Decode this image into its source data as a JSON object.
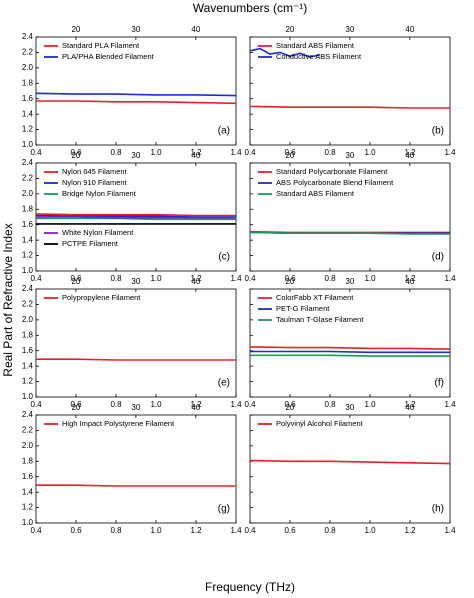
{
  "figure": {
    "top_axis_label": "Wavenumbers (cm⁻¹)",
    "y_label": "Real Part of Refractive Index",
    "x_label": "Frequency (THz)"
  },
  "chart_data": [
    {
      "type": "line",
      "annotation": "(a)",
      "x": [
        0.4,
        0.6,
        0.8,
        1.0,
        1.2,
        1.4
      ],
      "xlim": [
        0.4,
        1.4
      ],
      "xticks": [
        0.4,
        0.6,
        0.8,
        {
          "value": 1.0,
          "label": "1.0"
        },
        1.2,
        1.4
      ],
      "x2lim": [
        13.34,
        46.7
      ],
      "x2ticks": [
        20,
        30,
        40
      ],
      "ylim": [
        1.0,
        2.4
      ],
      "yticks": [
        {
          "value": 1.0,
          "label": "1.0"
        },
        1.2,
        1.4,
        1.6,
        1.8,
        {
          "value": 2.0,
          "label": "2.0"
        },
        2.2,
        2.4
      ],
      "series": [
        {
          "name": "Standard PLA Filament",
          "color": "#e8202a",
          "values": [
            1.57,
            1.57,
            1.56,
            1.56,
            1.55,
            1.54
          ]
        },
        {
          "name": "PLA/PHA Blended Filament",
          "color": "#1f2bd0",
          "values": [
            1.67,
            1.66,
            1.66,
            1.65,
            1.65,
            1.64
          ]
        }
      ]
    },
    {
      "type": "line",
      "annotation": "(b)",
      "x": [
        0.4,
        0.6,
        0.8,
        1.0,
        1.2,
        1.4
      ],
      "xlim": [
        0.4,
        1.4
      ],
      "xticks": [
        0.4,
        0.6,
        0.8,
        {
          "value": 1.0,
          "label": "1.0"
        },
        1.2,
        1.4
      ],
      "x2lim": [
        13.34,
        46.7
      ],
      "x2ticks": [
        20,
        30,
        40
      ],
      "ylim": [
        1.0,
        2.4
      ],
      "yticks": [
        1.0,
        1.2,
        1.4,
        1.6,
        1.8,
        2.0,
        2.2,
        2.4
      ],
      "series": [
        {
          "name": "Standard ABS Filament",
          "color": "#e8202a",
          "values": [
            1.5,
            1.49,
            1.49,
            1.49,
            1.48,
            1.48
          ]
        },
        {
          "name": "Conductive ABS Filament",
          "color": "#1f2bd0",
          "x": [
            0.4,
            0.45,
            0.5,
            0.55,
            0.6,
            0.65,
            0.7,
            0.75
          ],
          "values": [
            2.22,
            2.25,
            2.18,
            2.2,
            2.15,
            2.19,
            2.14,
            2.17
          ]
        }
      ]
    },
    {
      "type": "line",
      "annotation": "(c)",
      "x": [
        0.4,
        0.6,
        0.8,
        1.0,
        1.2,
        1.4
      ],
      "xlim": [
        0.4,
        1.4
      ],
      "xticks": [
        0.4,
        0.6,
        0.8,
        {
          "value": 1.0,
          "label": "1.0"
        },
        1.2,
        1.4
      ],
      "x2lim": [
        13.34,
        46.7
      ],
      "x2ticks": [
        20,
        30,
        40
      ],
      "ylim": [
        1.0,
        2.4
      ],
      "yticks": [
        {
          "value": 1.0,
          "label": "1.0"
        },
        1.2,
        1.4,
        1.6,
        1.8,
        {
          "value": 2.0,
          "label": "2.0"
        },
        2.2,
        2.4
      ],
      "series": [
        {
          "name": "Nylon 645 Filament",
          "color": "#e8202a",
          "values": [
            1.74,
            1.73,
            1.73,
            1.73,
            1.72,
            1.72
          ]
        },
        {
          "name": "Nylon 910 Filament",
          "color": "#1f2bd0",
          "values": [
            1.72,
            1.71,
            1.71,
            1.71,
            1.7,
            1.7
          ]
        },
        {
          "name": "Bridge Nylon Filament",
          "color": "#1e9a5a",
          "values": [
            1.68,
            1.68,
            1.68,
            1.67,
            1.67,
            1.67
          ]
        },
        {
          "name": "White Nylon Filament",
          "color": "#8a1fc0",
          "values": [
            1.7,
            1.7,
            1.69,
            1.69,
            1.69,
            1.69
          ]
        },
        {
          "name": "PCTPE Filament",
          "color": "#000000",
          "values": [
            1.61,
            1.61,
            1.61,
            1.61,
            1.61,
            1.61
          ]
        }
      ]
    },
    {
      "type": "line",
      "annotation": "(d)",
      "x": [
        0.4,
        0.6,
        0.8,
        1.0,
        1.2,
        1.4
      ],
      "xlim": [
        0.4,
        1.4
      ],
      "xticks": [
        0.4,
        0.6,
        0.8,
        {
          "value": 1.0,
          "label": "1.0"
        },
        1.2,
        1.4
      ],
      "x2lim": [
        13.34,
        46.7
      ],
      "x2ticks": [
        20,
        30,
        40
      ],
      "ylim": [
        1.0,
        2.4
      ],
      "yticks": [
        1.0,
        1.2,
        1.4,
        1.6,
        1.8,
        2.0,
        2.2,
        2.4
      ],
      "series": [
        {
          "name": "Standard Polycarbonate Filament",
          "color": "#e8202a",
          "values": [
            1.51,
            1.5,
            1.5,
            1.5,
            1.5,
            1.5
          ]
        },
        {
          "name": "ABS Polycarbonate Blend Filament",
          "color": "#1f2bd0",
          "values": [
            1.5,
            1.49,
            1.49,
            1.49,
            1.49,
            1.49
          ]
        },
        {
          "name": "Standard ABS Filament",
          "color": "#1e9a5a",
          "values": [
            1.5,
            1.49,
            1.49,
            1.49,
            1.48,
            1.48
          ]
        }
      ]
    },
    {
      "type": "line",
      "annotation": "(e)",
      "x": [
        0.4,
        0.6,
        0.8,
        1.0,
        1.2,
        1.4
      ],
      "xlim": [
        0.4,
        1.4
      ],
      "xticks": [
        0.4,
        0.6,
        0.8,
        {
          "value": 1.0,
          "label": "1.0"
        },
        1.2,
        1.4
      ],
      "x2lim": [
        13.34,
        46.7
      ],
      "x2ticks": [
        20,
        30,
        40
      ],
      "ylim": [
        1.0,
        2.4
      ],
      "yticks": [
        {
          "value": 1.0,
          "label": "1.0"
        },
        1.2,
        1.4,
        1.6,
        1.8,
        {
          "value": 2.0,
          "label": "2.0"
        },
        2.2,
        2.4
      ],
      "series": [
        {
          "name": "Polypropylene Filament",
          "color": "#e8202a",
          "values": [
            1.49,
            1.49,
            1.48,
            1.48,
            1.48,
            1.48
          ]
        }
      ]
    },
    {
      "type": "line",
      "annotation": "(f)",
      "x": [
        0.4,
        0.6,
        0.8,
        1.0,
        1.2,
        1.4
      ],
      "xlim": [
        0.4,
        1.4
      ],
      "xticks": [
        0.4,
        0.6,
        0.8,
        {
          "value": 1.0,
          "label": "1.0"
        },
        1.2,
        1.4
      ],
      "x2lim": [
        13.34,
        46.7
      ],
      "x2ticks": [
        20,
        30,
        40
      ],
      "ylim": [
        1.0,
        2.4
      ],
      "yticks": [
        1.0,
        1.2,
        1.4,
        1.6,
        1.8,
        2.0,
        2.2,
        2.4
      ],
      "series": [
        {
          "name": "ColorFabb XT Filament",
          "color": "#e8202a",
          "values": [
            1.65,
            1.64,
            1.64,
            1.63,
            1.63,
            1.62
          ]
        },
        {
          "name": "PET-G Filament",
          "color": "#1f2bd0",
          "values": [
            1.59,
            1.59,
            1.59,
            1.58,
            1.58,
            1.58
          ]
        },
        {
          "name": "Taulman T-Glase Filament",
          "color": "#1e9a5a",
          "values": [
            1.54,
            1.54,
            1.54,
            1.53,
            1.53,
            1.53
          ]
        }
      ]
    },
    {
      "type": "line",
      "annotation": "(g)",
      "x": [
        0.4,
        0.6,
        0.8,
        1.0,
        1.2,
        1.4
      ],
      "xlim": [
        0.4,
        1.4
      ],
      "xticks": [
        0.4,
        0.6,
        0.8,
        {
          "value": 1.0,
          "label": "1.0"
        },
        1.2,
        1.4
      ],
      "x2lim": [
        13.34,
        46.7
      ],
      "x2ticks": [
        20,
        30,
        40
      ],
      "ylim": [
        1.0,
        2.4
      ],
      "yticks": [
        {
          "value": 1.0,
          "label": "1.0"
        },
        1.2,
        1.4,
        1.6,
        1.8,
        {
          "value": 2.0,
          "label": "2.0"
        },
        2.2,
        2.4
      ],
      "series": [
        {
          "name": "High Impact Polystyrene Filament",
          "color": "#e8202a",
          "values": [
            1.49,
            1.49,
            1.48,
            1.48,
            1.48,
            1.48
          ]
        }
      ]
    },
    {
      "type": "line",
      "annotation": "(h)",
      "x": [
        0.4,
        0.6,
        0.8,
        1.0,
        1.2,
        1.4
      ],
      "xlim": [
        0.4,
        1.4
      ],
      "xticks": [
        0.4,
        0.6,
        0.8,
        {
          "value": 1.0,
          "label": "1.0"
        },
        1.2,
        1.4
      ],
      "x2lim": [
        13.34,
        46.7
      ],
      "x2ticks": [
        20,
        30,
        40
      ],
      "ylim": [
        1.0,
        2.4
      ],
      "yticks": [
        1.0,
        1.2,
        1.4,
        1.6,
        1.8,
        2.0,
        2.2,
        2.4
      ],
      "series": [
        {
          "name": "Polyvinyl Alcohol Filament",
          "color": "#e8202a",
          "values": [
            1.81,
            1.8,
            1.8,
            1.79,
            1.78,
            1.77
          ]
        }
      ]
    }
  ]
}
